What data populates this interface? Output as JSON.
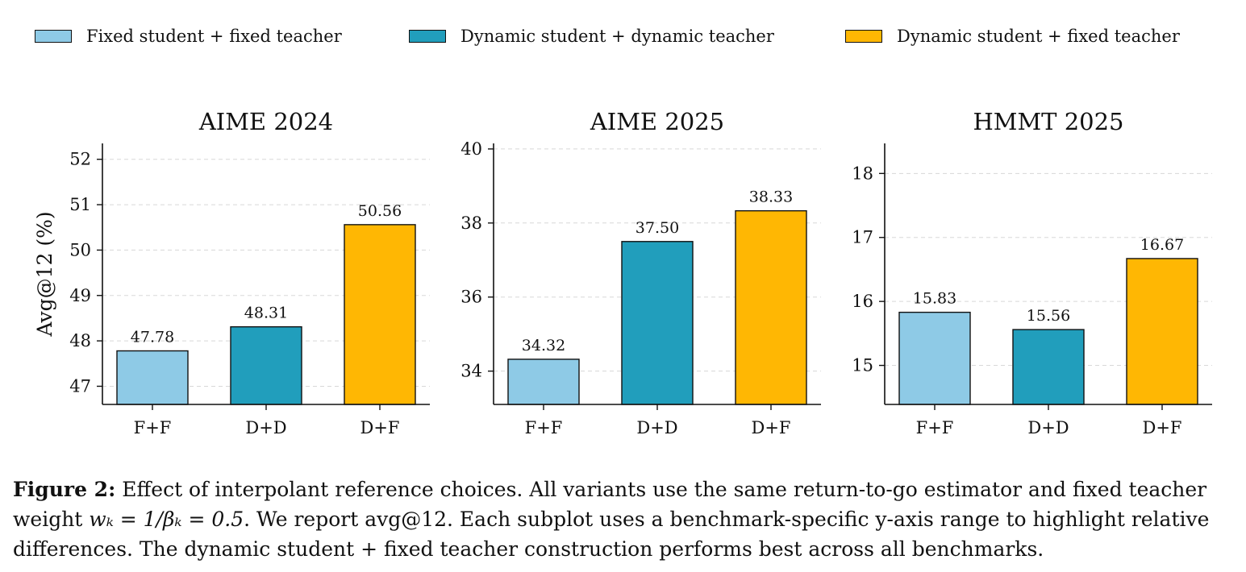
{
  "legend": [
    {
      "label": "Fixed student + fixed teacher",
      "color": "#8ecae6"
    },
    {
      "label": "Dynamic student + dynamic teacher",
      "color": "#219ebc"
    },
    {
      "label": "Dynamic student + fixed teacher",
      "color": "#ffb703"
    }
  ],
  "chart_data": [
    {
      "type": "bar",
      "title": "AIME 2024",
      "ylabel": "Avg@12 (%)",
      "categories": [
        "F+F",
        "D+D",
        "D+F"
      ],
      "values": [
        47.78,
        48.31,
        50.56
      ],
      "value_labels": [
        "47.78",
        "48.31",
        "50.56"
      ],
      "colors": [
        "#8ecae6",
        "#219ebc",
        "#ffb703"
      ],
      "ylim": [
        46.6,
        52.35
      ],
      "yticks": [
        47,
        48,
        49,
        50,
        51,
        52
      ],
      "grid": true
    },
    {
      "type": "bar",
      "title": "AIME 2025",
      "ylabel": "",
      "categories": [
        "F+F",
        "D+D",
        "D+F"
      ],
      "values": [
        34.32,
        37.5,
        38.33
      ],
      "value_labels": [
        "34.32",
        "37.50",
        "38.33"
      ],
      "colors": [
        "#8ecae6",
        "#219ebc",
        "#ffb703"
      ],
      "ylim": [
        33.1,
        40.15
      ],
      "yticks": [
        34,
        36,
        38,
        40
      ],
      "grid": true
    },
    {
      "type": "bar",
      "title": "HMMT 2025",
      "ylabel": "",
      "categories": [
        "F+F",
        "D+D",
        "D+F"
      ],
      "values": [
        15.83,
        15.56,
        16.67
      ],
      "value_labels": [
        "15.83",
        "15.56",
        "16.67"
      ],
      "colors": [
        "#8ecae6",
        "#219ebc",
        "#ffb703"
      ],
      "ylim": [
        14.39,
        18.47
      ],
      "yticks": [
        15,
        16,
        17,
        18
      ],
      "grid": true
    }
  ],
  "caption": {
    "label": "Figure 2:",
    "part1": " Effect of interpolant reference choices. All variants use the same return-to-go estimator and fixed teacher weight ",
    "math": "wₖ = 1/βₖ = 0.5",
    "part2": ". We report avg@12. Each subplot uses a benchmark-specific y-axis range to highlight relative differences. The dynamic student + fixed teacher construction performs best across all benchmarks."
  }
}
